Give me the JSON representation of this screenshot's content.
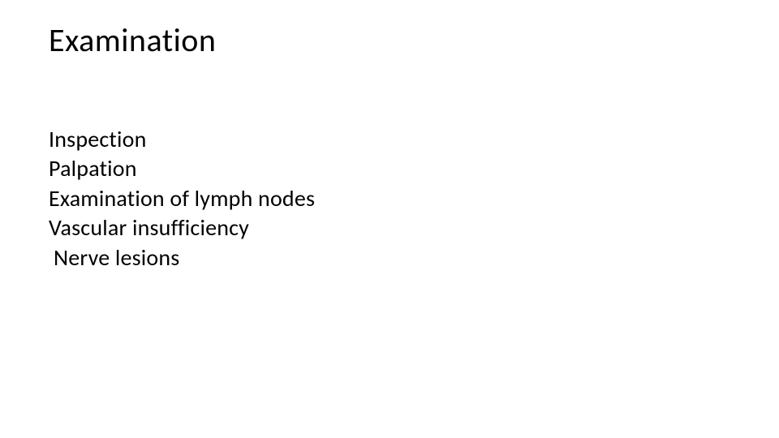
{
  "slide": {
    "title": "Examination",
    "items": [
      "Inspection",
      "Palpation",
      "Examination of lymph nodes",
      "Vascular insufficiency",
      "Nerve lesions"
    ],
    "title_fontsize": 40,
    "item_fontsize": 28,
    "text_color": "#000000",
    "background_color": "#ffffff",
    "title_margin_bottom": 80,
    "item_line_height": 1.3
  }
}
